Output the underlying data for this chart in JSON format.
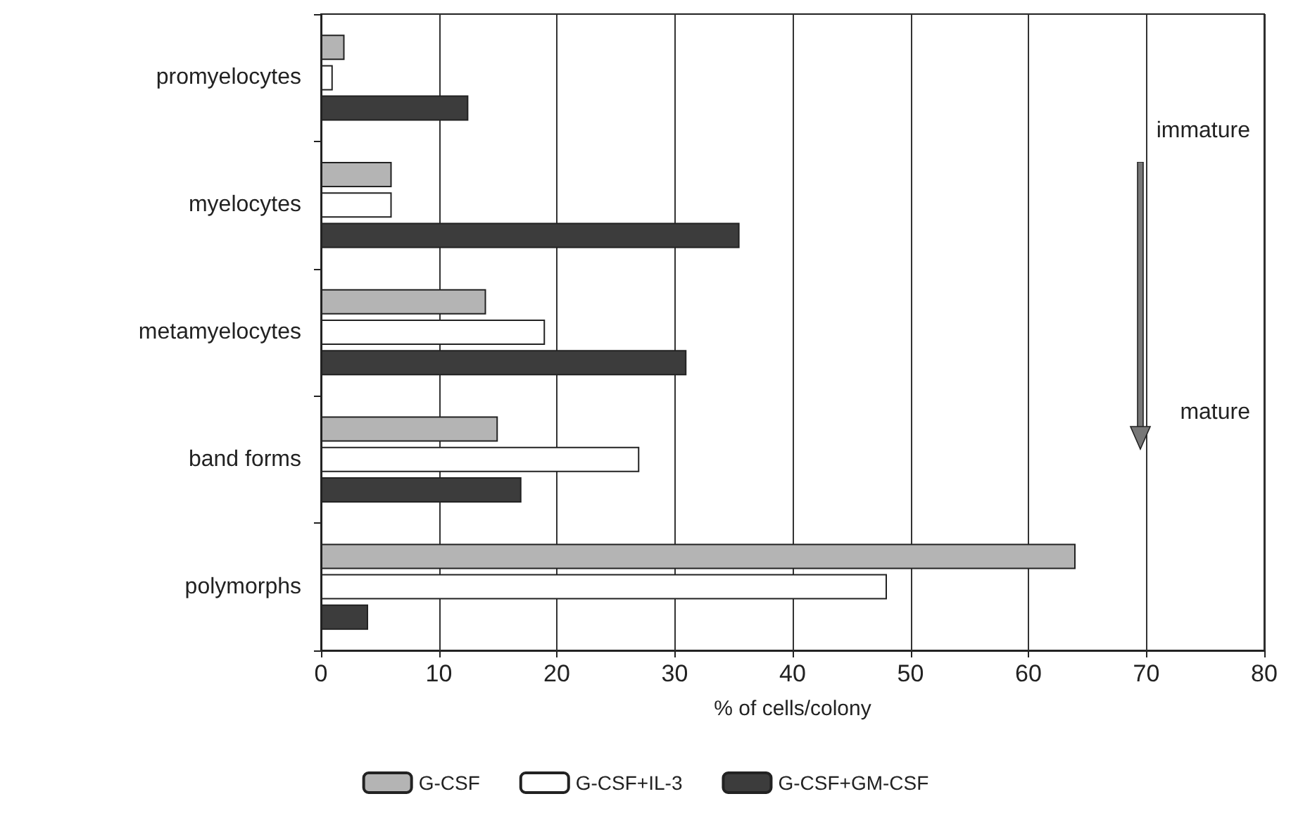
{
  "chart_data": {
    "type": "bar",
    "orientation": "horizontal",
    "xlabel": "% of cells/colony",
    "categories": [
      "promyelocytes",
      "myelocytes",
      "metamyelocytes",
      "band forms",
      "polymorphs"
    ],
    "series": [
      {
        "name": "G-CSF",
        "color": "#b4b4b4",
        "values": [
          2,
          6,
          14,
          15,
          64
        ]
      },
      {
        "name": "G-CSF+IL-3",
        "color": "#ffffff",
        "values": [
          1,
          6,
          19,
          27,
          48
        ]
      },
      {
        "name": "G-CSF+GM-CSF",
        "color": "#3c3c3c",
        "values": [
          12.5,
          35.5,
          31,
          17,
          4
        ]
      }
    ],
    "xlim": [
      0,
      80
    ],
    "xticks": [
      0,
      10,
      20,
      30,
      40,
      50,
      60,
      70,
      80
    ],
    "grid": "x",
    "legend": "bottom",
    "annotations": [
      "immature",
      "mature"
    ]
  }
}
